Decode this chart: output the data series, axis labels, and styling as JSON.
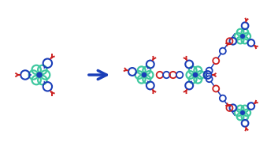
{
  "bg_color": "#ffffff",
  "arrow_color": "#1a3eb8",
  "metal_color": "#1a3eb8",
  "ligand_color": "#40c8a0",
  "phenyl_color": "#1a3eb8",
  "carboxyl_color": "#cc2020",
  "figsize": [
    3.39,
    1.89
  ],
  "dpi": 100,
  "lw_petal": 1.6,
  "lw_phenyl": 1.5,
  "lw_carboxyl": 1.4,
  "lw_chain": 1.3
}
